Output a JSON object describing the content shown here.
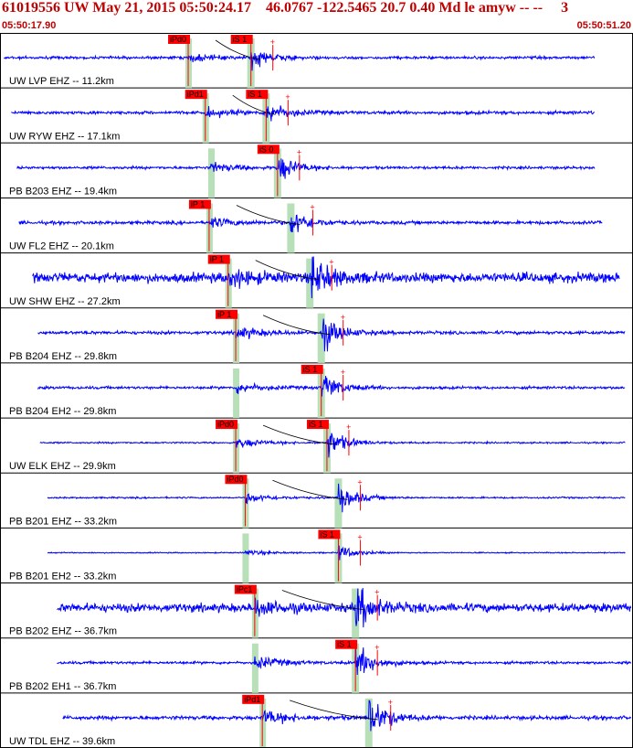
{
  "header": {
    "title": "61019556 UW May 21, 2015 05:50:24.17    46.0767 -122.5465 20.7 0.40 Md le amyw -- --     3",
    "start_time": "05:50:17.90",
    "end_time": "05:50:51.20"
  },
  "colors": {
    "trace": "#0000ff",
    "pick_box": "#ff0000",
    "pick_text": "#000000",
    "window": "#b8e0b8",
    "title": "#c00000"
  },
  "chart_data": {
    "type": "seismogram",
    "x_unit": "s",
    "x_range": [
      "05:50:17.90",
      "05:50:51.20"
    ],
    "grid": false,
    "traces": [
      {
        "label": "UW LVP EHZ -- 11.2km",
        "p_pick": "iPd0",
        "s_pick": "iS 1",
        "p_time": 9.9,
        "s_time": 13.2,
        "amp": 0.45,
        "noise": 0.05,
        "start": 0.2,
        "end": 31.3
      },
      {
        "label": "UW RYW EHZ -- 17.1km",
        "p_pick": "iPd1",
        "s_pick": "iS 1",
        "p_time": 10.8,
        "s_time": 14.0,
        "amp": 0.45,
        "noise": 0.06,
        "start": 0.6,
        "end": 31.3
      },
      {
        "label": "PB B203 EHZ -- 19.4km",
        "p_pick": "",
        "s_pick": "iS 0",
        "p_time": 11.1,
        "s_time": 14.6,
        "amp": 0.55,
        "noise": 0.05,
        "start": 0.9,
        "end": 31.3
      },
      {
        "label": "UW FL2 EHZ -- 20.1km",
        "p_pick": "iP 1",
        "s_pick": "",
        "p_time": 11.0,
        "s_time": 15.3,
        "amp": 0.55,
        "noise": 0.06,
        "start": 1.0,
        "end": 31.7
      },
      {
        "label": "UW SHW EHZ -- 27.2km",
        "p_pick": "iP 1",
        "s_pick": "",
        "p_time": 12.0,
        "s_time": 16.3,
        "amp": 0.9,
        "noise": 0.18,
        "start": 1.7,
        "end": 32.6
      },
      {
        "label": "PB B204 EHZ -- 29.8km",
        "p_pick": "iP 1",
        "s_pick": "",
        "p_time": 12.4,
        "s_time": 16.9,
        "amp": 0.7,
        "noise": 0.06,
        "start": 2.0,
        "end": 32.9
      },
      {
        "label": "PB B204 EH2 -- 29.8km",
        "p_pick": "",
        "s_pick": "iS 1",
        "p_time": 12.4,
        "s_time": 16.9,
        "amp": 0.6,
        "noise": 0.05,
        "start": 2.0,
        "end": 32.9
      },
      {
        "label": "UW ELK EHZ -- 29.9km",
        "p_pick": "iPd0",
        "s_pick": "iS 1",
        "p_time": 12.4,
        "s_time": 17.2,
        "amp": 0.6,
        "noise": 0.03,
        "start": 2.1,
        "end": 32.9
      },
      {
        "label": "PB B201 EHZ -- 33.2km",
        "p_pick": "iPd0",
        "s_pick": "",
        "p_time": 12.9,
        "s_time": 17.8,
        "amp": 0.55,
        "noise": 0.03,
        "start": 2.5,
        "end": 32.9
      },
      {
        "label": "PB B201 EH2 -- 33.2km",
        "p_pick": "",
        "s_pick": "iS 1",
        "p_time": 12.9,
        "s_time": 17.8,
        "amp": 0.3,
        "noise": 0.02,
        "start": 2.5,
        "end": 32.9
      },
      {
        "label": "PB B202 EHZ -- 36.7km",
        "p_pick": "iPc1",
        "s_pick": "",
        "p_time": 13.4,
        "s_time": 18.7,
        "amp": 0.85,
        "noise": 0.16,
        "start": 3.0,
        "end": 33.2
      },
      {
        "label": "PB B202 EH1 -- 36.7km",
        "p_pick": "",
        "s_pick": "iS 1",
        "p_time": 13.4,
        "s_time": 18.7,
        "amp": 0.7,
        "noise": 0.05,
        "start": 3.0,
        "end": 33.2
      },
      {
        "label": "UW TDL EHZ -- 39.6km",
        "p_pick": "iPd1",
        "s_pick": "",
        "p_time": 13.8,
        "s_time": 19.4,
        "amp": 0.85,
        "noise": 0.07,
        "start": 3.3,
        "end": 33.2
      }
    ]
  }
}
